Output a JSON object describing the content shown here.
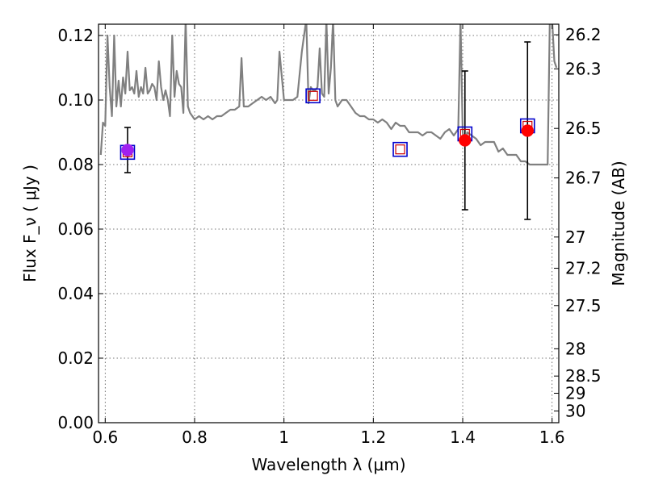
{
  "chart_data": {
    "type": "scatter",
    "xlabel": "Wavelength  λ (μm)",
    "ylabel": "Flux  F_ν  ( μJy )",
    "ylabel_right": "Magnitude (AB)",
    "xlim": [
      0.585,
      1.615
    ],
    "ylim": [
      0.0,
      0.1235
    ],
    "x_ticks": [
      0.6,
      0.8,
      1.0,
      1.2,
      1.4,
      1.6
    ],
    "x_tick_labels": [
      "0.6",
      "0.8",
      "1",
      "1.2",
      "1.4",
      "1.6"
    ],
    "y_ticks": [
      0.0,
      0.02,
      0.04,
      0.06,
      0.08,
      0.1,
      0.12
    ],
    "y_tick_labels": [
      "0.00",
      "0.02",
      "0.04",
      "0.06",
      "0.08",
      "0.10",
      "0.12"
    ],
    "right_ticks": [
      26.2,
      26.3,
      26.5,
      26.7,
      27,
      27.2,
      27.5,
      28,
      28.5,
      29,
      30
    ],
    "right_tick_labels": [
      "26.2",
      "26.3",
      "26.5",
      "26.7",
      "27",
      "27.2",
      "27.5",
      "28",
      "28.5",
      "29",
      "30"
    ],
    "grid": true,
    "colors": {
      "template_line": "#808080",
      "observed": "#ff0000",
      "model_box": "#0000cc",
      "model_inner": "#cc0000",
      "errorbar": "#000000",
      "overlap": "#a020f0"
    },
    "series": [
      {
        "role": "model-spectrum",
        "x": [
          0.59,
          0.595,
          0.6,
          0.605,
          0.61,
          0.615,
          0.62,
          0.625,
          0.63,
          0.635,
          0.64,
          0.645,
          0.65,
          0.655,
          0.66,
          0.665,
          0.67,
          0.675,
          0.68,
          0.685,
          0.69,
          0.695,
          0.7,
          0.705,
          0.71,
          0.715,
          0.72,
          0.725,
          0.73,
          0.735,
          0.74,
          0.745,
          0.75,
          0.755,
          0.76,
          0.765,
          0.77,
          0.775,
          0.78,
          0.785,
          0.79,
          0.8,
          0.81,
          0.82,
          0.83,
          0.84,
          0.85,
          0.86,
          0.87,
          0.88,
          0.89,
          0.9,
          0.905,
          0.91,
          0.915,
          0.92,
          0.93,
          0.94,
          0.95,
          0.96,
          0.97,
          0.975,
          0.98,
          0.985,
          0.99,
          1.0,
          1.01,
          1.02,
          1.03,
          1.04,
          1.05,
          1.055,
          1.06,
          1.065,
          1.07,
          1.075,
          1.08,
          1.085,
          1.09,
          1.095,
          1.1,
          1.105,
          1.11,
          1.115,
          1.12,
          1.13,
          1.14,
          1.15,
          1.16,
          1.17,
          1.18,
          1.19,
          1.2,
          1.21,
          1.22,
          1.23,
          1.24,
          1.25,
          1.26,
          1.27,
          1.28,
          1.29,
          1.3,
          1.31,
          1.32,
          1.33,
          1.34,
          1.35,
          1.36,
          1.37,
          1.38,
          1.39,
          1.395,
          1.4,
          1.405,
          1.41,
          1.42,
          1.43,
          1.44,
          1.45,
          1.46,
          1.47,
          1.48,
          1.49,
          1.5,
          1.51,
          1.52,
          1.53,
          1.54,
          1.55,
          1.56,
          1.57,
          1.58,
          1.59,
          1.595,
          1.6,
          1.605,
          1.61
        ],
        "y": [
          0.083,
          0.093,
          0.092,
          0.12,
          0.104,
          0.095,
          0.12,
          0.098,
          0.106,
          0.098,
          0.107,
          0.102,
          0.115,
          0.103,
          0.104,
          0.102,
          0.109,
          0.101,
          0.104,
          0.102,
          0.11,
          0.102,
          0.103,
          0.105,
          0.104,
          0.1,
          0.112,
          0.104,
          0.1,
          0.103,
          0.1,
          0.095,
          0.12,
          0.101,
          0.109,
          0.105,
          0.104,
          0.096,
          0.125,
          0.098,
          0.096,
          0.094,
          0.095,
          0.094,
          0.095,
          0.094,
          0.095,
          0.095,
          0.096,
          0.097,
          0.097,
          0.098,
          0.113,
          0.098,
          0.098,
          0.098,
          0.099,
          0.1,
          0.101,
          0.1,
          0.101,
          0.1,
          0.099,
          0.1,
          0.115,
          0.1,
          0.1,
          0.1,
          0.101,
          0.115,
          0.125,
          0.099,
          0.104,
          0.103,
          0.103,
          0.104,
          0.116,
          0.102,
          0.101,
          0.125,
          0.102,
          0.11,
          0.125,
          0.1,
          0.098,
          0.1,
          0.1,
          0.098,
          0.096,
          0.095,
          0.095,
          0.094,
          0.094,
          0.093,
          0.094,
          0.093,
          0.091,
          0.093,
          0.092,
          0.092,
          0.09,
          0.09,
          0.09,
          0.089,
          0.09,
          0.09,
          0.089,
          0.088,
          0.09,
          0.091,
          0.089,
          0.091,
          0.125,
          0.09,
          0.086,
          0.09,
          0.089,
          0.088,
          0.086,
          0.087,
          0.087,
          0.087,
          0.084,
          0.085,
          0.083,
          0.083,
          0.083,
          0.081,
          0.081,
          0.08,
          0.08,
          0.08,
          0.08,
          0.08,
          0.125,
          0.125,
          0.112,
          0.11
        ]
      },
      {
        "role": "observed-flux",
        "x": [
          0.65,
          1.405,
          1.545
        ],
        "y": [
          0.0845,
          0.0875,
          0.0905
        ],
        "yerr": [
          0.007,
          0.0215,
          0.0275
        ]
      },
      {
        "role": "model-band-flux",
        "x": [
          0.65,
          1.065,
          1.26,
          1.405,
          1.545
        ],
        "y": [
          0.0838,
          0.1013,
          0.0847,
          0.0895,
          0.092
        ]
      }
    ]
  }
}
